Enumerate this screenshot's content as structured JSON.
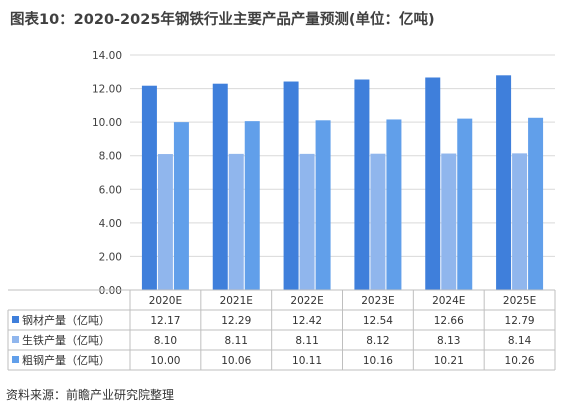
{
  "title": "图表10：2020-2025年钢铁行业主要产品产量预测(单位：亿吨)",
  "source": "资料来源：前瞻产业研究院整理",
  "colors": {
    "series_0": "#3F7FDB",
    "series_1": "#90B6ED",
    "series_2": "#619FEA",
    "grid": "#D9D9D9",
    "axis": "#BFBFBF"
  },
  "chart_data": {
    "type": "bar",
    "title": "图表10：2020-2025年钢铁行业主要产品产量预测(单位：亿吨)",
    "categories": [
      "2020E",
      "2021E",
      "2022E",
      "2023E",
      "2024E",
      "2025E"
    ],
    "series": [
      {
        "name": "钢材产量（亿吨）",
        "values": [
          12.17,
          12.29,
          12.42,
          12.54,
          12.66,
          12.79
        ],
        "labels": [
          "12.17",
          "12.29",
          "12.42",
          "12.54",
          "12.66",
          "12.79"
        ]
      },
      {
        "name": "生铁产量（亿吨）",
        "values": [
          8.1,
          8.11,
          8.11,
          8.12,
          8.13,
          8.14
        ],
        "labels": [
          "8.10",
          "8.11",
          "8.11",
          "8.12",
          "8.13",
          "8.14"
        ]
      },
      {
        "name": "粗钢产量（亿吨）",
        "values": [
          10.0,
          10.06,
          10.11,
          10.16,
          10.21,
          10.26
        ],
        "labels": [
          "10.00",
          "10.06",
          "10.11",
          "10.16",
          "10.21",
          "10.26"
        ]
      }
    ],
    "ylim": [
      0,
      14
    ],
    "yticks": [
      "0.00",
      "2.00",
      "4.00",
      "6.00",
      "8.00",
      "10.00",
      "12.00",
      "14.00"
    ],
    "grid": true,
    "legend": "data-table-below"
  }
}
